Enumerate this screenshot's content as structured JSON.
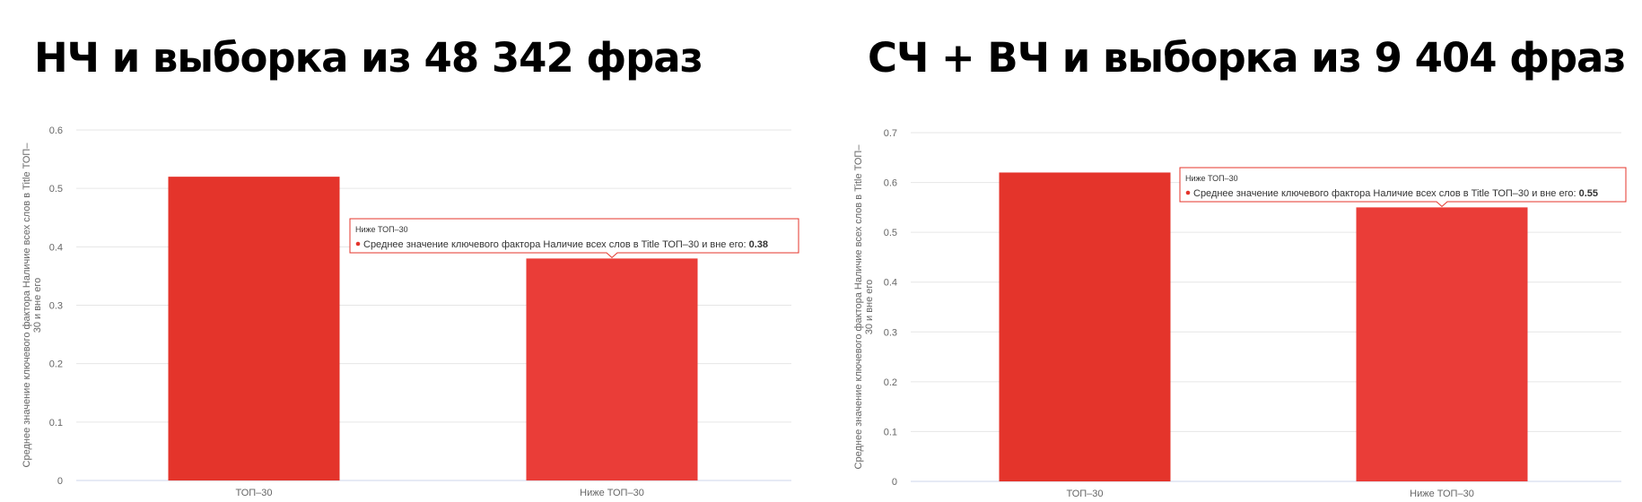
{
  "colors": {
    "bar": "#e4342b",
    "bar_hover": "#ea3d38",
    "tooltip_border": "#e4342b"
  },
  "chart_data": [
    {
      "type": "bar",
      "heading": "НЧ и выборка из 48 342 фраз",
      "ylabel": "Среднее значение ключевого фактора Наличие всех слов в Title ТОП–30 и вне его",
      "categories": [
        "ТОП–30",
        "Ниже ТОП–30"
      ],
      "series": [
        {
          "name": "Среднее значение ключевого фактора Наличие всех слов в Title ТОП–30 и вне его",
          "values": [
            0.52,
            0.38
          ]
        }
      ],
      "ylim": [
        0,
        0.6
      ],
      "yticks": [
        "0",
        "0.1",
        "0.2",
        "0.3",
        "0.4",
        "0.5",
        "0.6"
      ],
      "grid": true,
      "tooltip": {
        "header": "Ниже ТОП–30",
        "label": "Среднее значение ключевого фактора Наличие всех слов в Title ТОП–30 и вне его: ",
        "value": "0.38"
      }
    },
    {
      "type": "bar",
      "heading": "СЧ + ВЧ и выборка из 9 404 фраз",
      "ylabel": "Среднее значение ключевого фактора Наличие всех слов в Title ТОП–30 и вне его",
      "categories": [
        "ТОП–30",
        "Ниже ТОП–30"
      ],
      "series": [
        {
          "name": "Среднее значение ключевого фактора Наличие всех слов в Title ТОП–30 и вне его",
          "values": [
            0.62,
            0.55
          ]
        }
      ],
      "ylim": [
        0,
        0.7
      ],
      "yticks": [
        "0",
        "0.1",
        "0.2",
        "0.3",
        "0.4",
        "0.5",
        "0.6",
        "0.7"
      ],
      "grid": true,
      "tooltip": {
        "header": "Ниже ТОП–30",
        "label": "Среднее значение ключевого фактора Наличие всех слов в Title ТОП–30 и вне его: ",
        "value": "0.55"
      }
    }
  ]
}
